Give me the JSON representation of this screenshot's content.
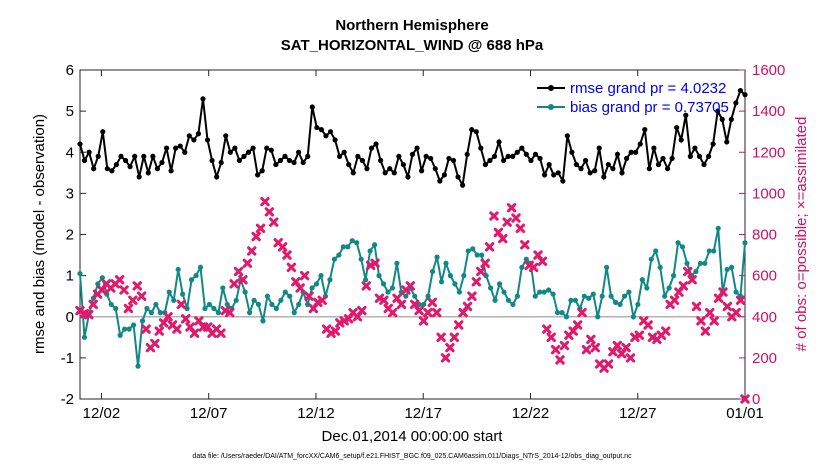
{
  "chart_data": {
    "type": "line",
    "title": "Northern Hemisphere",
    "subtitle": "SAT_HORIZONTAL_WIND @ 688 hPa",
    "xlabel": "Dec.01,2014 00:00:00 start",
    "ylabel": "rmse and bias (model - observation)",
    "y2label": "# of obs: o=possible; ×=assimilated",
    "footnote": "data file: /Users/raeder/DAI/ATM_forcXX/CAM6_setup/f.e21.FHIST_BGC.f09_025.CAM6assim.011/Diags_NTrS_2014-12/obs_diag_output.nc",
    "xlim": [
      0,
      31
    ],
    "ylim": [
      -2,
      6
    ],
    "y2lim": [
      0,
      1600
    ],
    "x_ticks": [
      {
        "value": 1,
        "label": "12/02"
      },
      {
        "value": 6,
        "label": "12/07"
      },
      {
        "value": 11,
        "label": "12/12"
      },
      {
        "value": 16,
        "label": "12/17"
      },
      {
        "value": 21,
        "label": "12/22"
      },
      {
        "value": 26,
        "label": "12/27"
      },
      {
        "value": 31,
        "label": "01/01"
      }
    ],
    "y_ticks": [
      -2,
      -1,
      0,
      1,
      2,
      3,
      4,
      5,
      6
    ],
    "y2_ticks": [
      0,
      200,
      400,
      600,
      800,
      1000,
      1200,
      1400,
      1600
    ],
    "legend_position": "top-right",
    "zero_line": true,
    "series": [
      {
        "name": "rmse grand pr = 4.0232",
        "color": "#000000",
        "axis": "left",
        "marker": "circle",
        "values": [
          4.2,
          3.8,
          4.0,
          3.6,
          3.9,
          4.5,
          3.6,
          3.55,
          3.7,
          3.9,
          3.8,
          3.65,
          3.9,
          3.4,
          3.9,
          3.5,
          3.9,
          3.6,
          3.75,
          4.1,
          3.55,
          4.1,
          4.15,
          4.0,
          4.4,
          4.3,
          4.45,
          5.3,
          4.3,
          3.8,
          3.4,
          3.75,
          4.4,
          4.0,
          4.1,
          3.8,
          3.9,
          4.0,
          4.1,
          3.45,
          3.55,
          4.1,
          4.05,
          3.7,
          3.8,
          3.9,
          3.8,
          3.75,
          4.0,
          3.75,
          3.9,
          5.1,
          4.6,
          4.55,
          4.4,
          4.5,
          4.3,
          3.9,
          4.0,
          3.7,
          3.5,
          3.9,
          3.8,
          3.6,
          4.1,
          4.2,
          3.8,
          3.5,
          3.6,
          3.5,
          3.9,
          3.7,
          3.4,
          3.95,
          4.1,
          3.55,
          3.9,
          3.85,
          3.6,
          3.3,
          3.45,
          3.85,
          3.8,
          3.4,
          3.2,
          3.95,
          4.55,
          4.5,
          4.1,
          3.7,
          3.8,
          3.9,
          4.25,
          3.8,
          3.9,
          3.9,
          4.0,
          4.1,
          3.95,
          3.8,
          3.95,
          3.85,
          3.45,
          3.7,
          3.45,
          3.5,
          3.3,
          4.4,
          4.0,
          3.7,
          3.6,
          3.8,
          3.5,
          3.55,
          4.1,
          3.4,
          3.7,
          3.6,
          3.95,
          3.5,
          3.85,
          4.0,
          4.0,
          4.2,
          4.55,
          3.6,
          4.1,
          3.7,
          3.85,
          3.6,
          3.85,
          4.6,
          4.3,
          4.9,
          3.9,
          4.1,
          3.9,
          3.7,
          3.9,
          4.2,
          5.0,
          4.8,
          4.25,
          4.8,
          5.2,
          5.5,
          5.4
        ]
      },
      {
        "name": "bias grand pr = 0.73705",
        "color": "#118888",
        "axis": "left",
        "marker": "circle",
        "values": [
          1.05,
          -0.5,
          0.05,
          0.45,
          0.8,
          0.95,
          0.55,
          0.3,
          0.2,
          -0.45,
          -0.3,
          -0.3,
          -0.2,
          -1.2,
          -0.1,
          0.2,
          0.1,
          0.3,
          0.1,
          0.1,
          0.6,
          0.4,
          1.15,
          0.55,
          0.2,
          0.9,
          1.0,
          1.2,
          0.2,
          0.3,
          0.2,
          0.1,
          0.7,
          0.3,
          0.2,
          0.4,
          0.9,
          0.6,
          0.1,
          0.4,
          0.3,
          -0.1,
          0.5,
          0.3,
          0.2,
          0.4,
          0.6,
          0.5,
          0.1,
          0.3,
          0.6,
          0.3,
          0.7,
          0.8,
          1.0,
          0.5,
          0.9,
          1.4,
          1.5,
          1.7,
          1.7,
          1.85,
          1.8,
          1.4,
          0.9,
          1.6,
          1.75,
          1.0,
          0.8,
          0.6,
          0.7,
          1.3,
          0.6,
          0.5,
          0.7,
          0.5,
          0.3,
          0.3,
          0.5,
          1.1,
          1.45,
          0.85,
          1.3,
          1.0,
          0.8,
          0.6,
          1.0,
          1.6,
          1.65,
          1.5,
          1.5,
          1.0,
          0.7,
          0.4,
          0.8,
          0.6,
          0.4,
          0.3,
          0.5,
          1.2,
          1.4,
          1.3,
          0.5,
          0.6,
          0.6,
          0.65,
          0.55,
          0.1,
          0.1,
          0.0,
          0.4,
          0.4,
          0.2,
          0.5,
          0.45,
          0.55,
          0.0,
          0.5,
          1.2,
          0.5,
          0.35,
          0.3,
          0.5,
          0.6,
          0.0,
          0.3,
          0.9,
          0.7,
          1.4,
          1.6,
          1.2,
          0.5,
          0.7,
          1.0,
          1.8,
          1.7,
          1.3,
          1.0,
          1.1,
          1.3,
          1.3,
          1.6,
          1.6,
          2.15,
          0.6,
          1.15,
          1.2,
          0.6,
          0.5,
          1.8
        ]
      },
      {
        "name": "assimilated",
        "color": "#e0196b",
        "axis": "right",
        "marker": "x",
        "values": [
          430,
          415,
          410,
          460,
          510,
          530,
          560,
          540,
          560,
          580,
          530,
          440,
          480,
          550,
          500,
          340,
          250,
          270,
          330,
          370,
          400,
          360,
          340,
          460,
          390,
          350,
          320,
          380,
          350,
          350,
          320,
          340,
          320,
          430,
          420,
          560,
          620,
          580,
          660,
          720,
          790,
          830,
          960,
          910,
          860,
          760,
          740,
          700,
          640,
          570,
          540,
          600,
          500,
          440,
          470,
          480,
          340,
          320,
          330,
          370,
          380,
          390,
          420,
          400,
          430,
          550,
          650,
          660,
          490,
          480,
          440,
          420,
          490,
          460,
          530,
          550,
          460,
          430,
          380,
          420,
          470,
          420,
          300,
          200,
          250,
          300,
          360,
          420,
          450,
          500,
          570,
          620,
          660,
          740,
          890,
          810,
          780,
          860,
          930,
          880,
          830,
          750,
          650,
          640,
          700,
          670,
          340,
          300,
          240,
          190,
          260,
          310,
          330,
          360,
          420,
          240,
          290,
          250,
          170,
          150,
          170,
          230,
          260,
          220,
          250,
          200,
          300,
          310,
          380,
          360,
          300,
          290,
          310,
          330,
          460,
          480,
          520,
          550,
          620,
          580,
          450,
          380,
          330,
          420,
          380,
          490,
          520,
          450,
          400,
          420,
          480,
          0
        ]
      }
    ],
    "y2_counts_scale": "right axis counts"
  }
}
